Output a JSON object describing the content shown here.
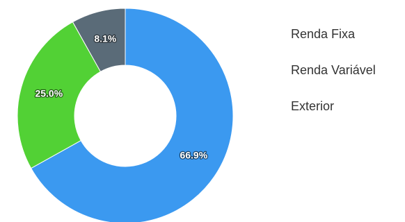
{
  "chart_data": {
    "type": "pie",
    "variant": "donut",
    "title": "",
    "legend_position": "right",
    "slices": [
      {
        "name": "Renda Fixa",
        "value": 66.9,
        "label": "66.9%",
        "color": "#3b99f0"
      },
      {
        "name": "Renda Variável",
        "value": 25.0,
        "label": "25.0%",
        "color": "#52d135"
      },
      {
        "name": "Exterior",
        "value": 8.1,
        "label": "8.1%",
        "color": "#5a6b78"
      }
    ]
  }
}
